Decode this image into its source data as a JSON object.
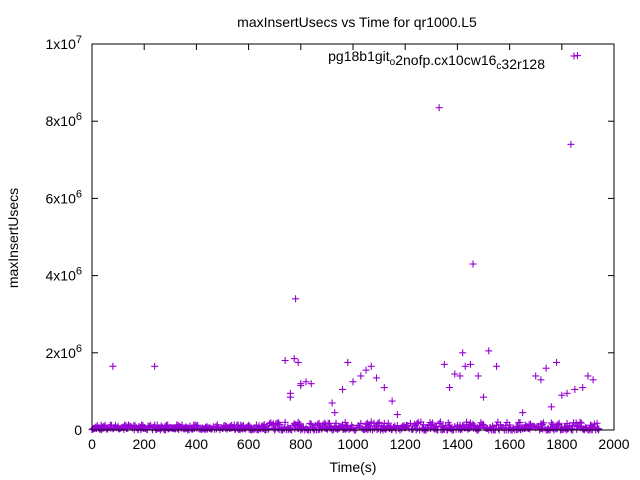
{
  "chart_data": {
    "type": "scatter",
    "title": "maxInsertUsecs vs Time for qr1000.L5",
    "xlabel": "Time(s)",
    "ylabel": "maxInsertUsecs",
    "xlim": [
      0,
      2000
    ],
    "ylim": [
      0,
      10000000
    ],
    "x_ticks": [
      0,
      200,
      400,
      600,
      800,
      1000,
      1200,
      1400,
      1600,
      1800,
      2000
    ],
    "y_ticks": [
      {
        "value": 0,
        "base": "0",
        "exp": ""
      },
      {
        "value": 2000000,
        "base": "2x10",
        "exp": "6"
      },
      {
        "value": 4000000,
        "base": "4x10",
        "exp": "6"
      },
      {
        "value": 6000000,
        "base": "6x10",
        "exp": "6"
      },
      {
        "value": 8000000,
        "base": "8x10",
        "exp": "6"
      },
      {
        "value": 10000000,
        "base": "1x10",
        "exp": "7"
      }
    ],
    "grid": false,
    "legend_position": "top-right",
    "series": [
      {
        "name": "pg18b1git_o2nofp.cx10cw16_c32r128",
        "color": "#9400d3",
        "x": [
          80,
          240,
          740,
          760,
          760,
          775,
          780,
          790,
          800,
          800,
          820,
          840,
          920,
          930,
          960,
          980,
          1000,
          1030,
          1050,
          1070,
          1090,
          1120,
          1150,
          1170,
          1330,
          1350,
          1370,
          1390,
          1410,
          1420,
          1430,
          1450,
          1460,
          1480,
          1500,
          1520,
          1550,
          1650,
          1700,
          1720,
          1740,
          1760,
          1780,
          1800,
          1820,
          1835,
          1850,
          1860,
          1880,
          1900,
          1920
        ],
        "y": [
          1650000,
          1650000,
          1800000,
          950000,
          850000,
          1850000,
          3400000,
          1750000,
          1200000,
          1150000,
          1250000,
          1200000,
          700000,
          450000,
          1050000,
          1750000,
          1250000,
          1400000,
          1550000,
          1650000,
          1350000,
          1100000,
          750000,
          400000,
          8350000,
          1700000,
          1100000,
          1450000,
          1400000,
          2000000,
          1650000,
          1700000,
          4300000,
          1400000,
          850000,
          2050000,
          1650000,
          450000,
          1400000,
          1300000,
          1600000,
          600000,
          1750000,
          900000,
          950000,
          7400000,
          1050000,
          9700000,
          1100000,
          1400000,
          1300000
        ]
      }
    ],
    "dense_baseline": {
      "x_start": 0,
      "x_end": 1940,
      "step": 5,
      "typical_y": 60000,
      "scatter_y_max": 250000
    }
  }
}
